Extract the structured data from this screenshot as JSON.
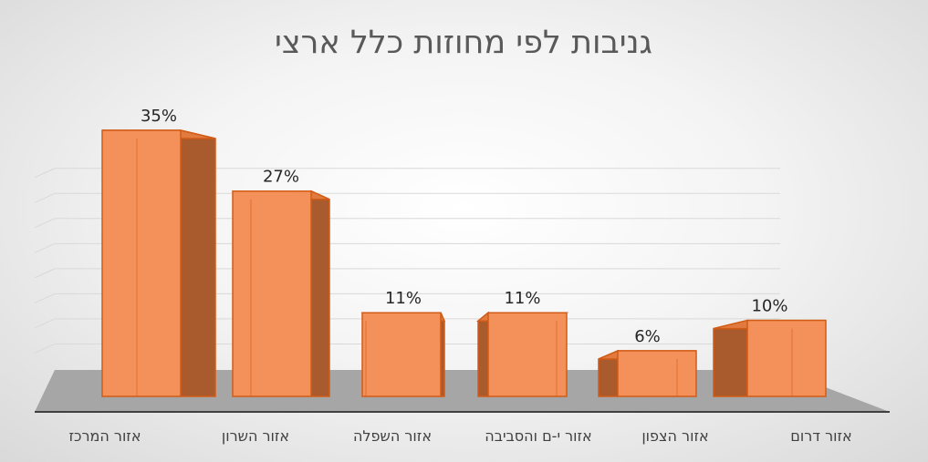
{
  "chart_data": {
    "type": "bar",
    "title": "גניבות לפי מחוזות כלל ארצי",
    "categories": [
      "אזור המרכז",
      "אזור השרון",
      "אזור השפלה",
      "אזור י-ם והסביבה",
      "אזור הצפון",
      "אזור דרום"
    ],
    "values": [
      35,
      27,
      11,
      11,
      6,
      10
    ],
    "data_labels": [
      "35%",
      "27%",
      "11%",
      "11%",
      "6%",
      "10%"
    ],
    "value_unit": "%",
    "ylim": [
      0,
      40
    ],
    "grid": true,
    "legend": "none",
    "style": "3d-column",
    "colors": {
      "bar_front": "#f4915a",
      "bar_side": "#a95b2e",
      "bar_top": "#e17a3f",
      "bar_edge": "#d25b16",
      "floor": "#a6a6a6",
      "axis": "#404040",
      "grid": "#d9d9d9"
    }
  }
}
